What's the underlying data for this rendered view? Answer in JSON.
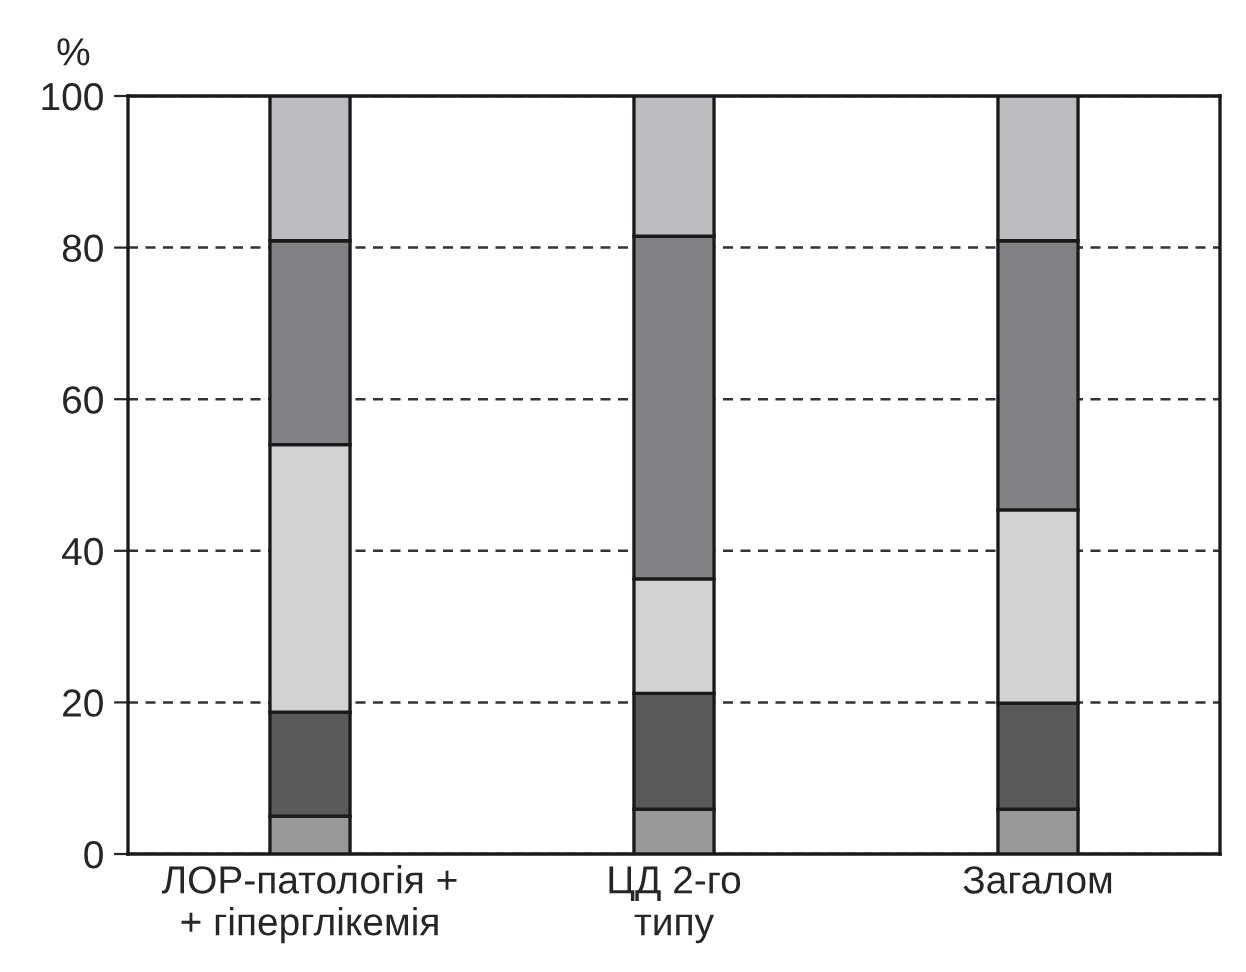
{
  "chart_data": {
    "type": "bar",
    "stacked": true,
    "ylabel": "%",
    "categories": [
      "ЛОР-патологія +\n+ гіперглікемія",
      "ЦД 2-го\nтипу",
      "Загалом"
    ],
    "series": [
      {
        "color": "#98999b",
        "values": [
          5.0,
          5.9,
          5.9
        ]
      },
      {
        "color": "#58595b",
        "values": [
          13.7,
          15.3,
          14.0
        ]
      },
      {
        "color": "#d1d2d4",
        "values": [
          35.3,
          15.1,
          25.5
        ]
      },
      {
        "color": "#818285",
        "values": [
          26.9,
          45.2,
          35.5
        ]
      },
      {
        "color": "#bcbdc0",
        "values": [
          19.1,
          18.5,
          19.1
        ]
      }
    ],
    "ylim": [
      0,
      100
    ],
    "yticks": [
      0,
      20,
      40,
      60,
      80,
      100
    ],
    "grid": "y",
    "legend": false
  }
}
